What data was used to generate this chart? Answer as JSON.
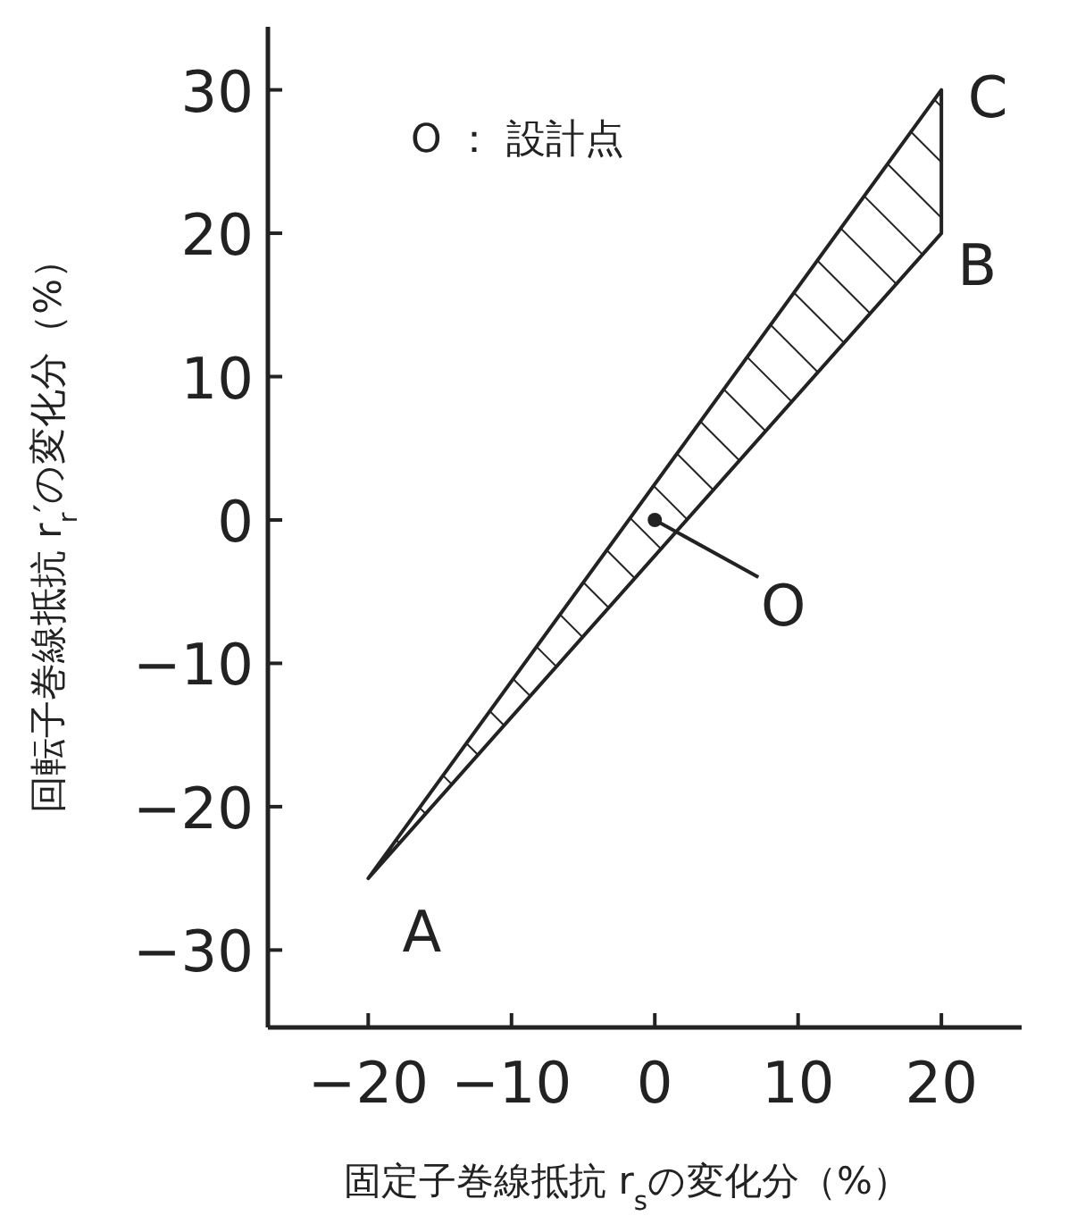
{
  "chart_data": {
    "type": "area",
    "xlabel": "固定子巻線抵抗 r$_{s}$の変化分（%）",
    "ylabel": "回転子巻線抵抗 r$_{r}$′の変化分（%）",
    "xlim": [
      -27,
      25.6
    ],
    "ylim": [
      -35.4,
      34.4
    ],
    "xticks": [
      -20,
      -10,
      0,
      10,
      20
    ],
    "yticks": [
      -30,
      -20,
      -10,
      0,
      10,
      20,
      30
    ],
    "series": [
      {
        "color": "#222222",
        "x": [
          -20,
          20,
          20,
          -20
        ],
        "values": [
          -25,
          30,
          20,
          -25
        ]
      },
      {
        "type": "scatter",
        "marker": "circle",
        "color": "#222222",
        "x": [
          0
        ],
        "values": [
          0
        ]
      }
    ],
    "annotations": [
      {
        "text": "A",
        "x": -20,
        "y": -25
      },
      {
        "text": "B",
        "x": 20,
        "y": 20
      },
      {
        "text": "C",
        "x": 20,
        "y": 30
      },
      {
        "text": "O",
        "x": 0,
        "y": 0
      },
      "O ： 設計点"
    ]
  }
}
